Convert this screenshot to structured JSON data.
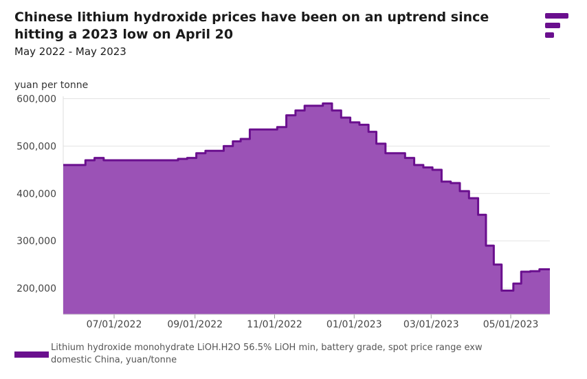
{
  "header": {
    "title": "Chinese lithium hydroxide prices have been on an uptrend since hitting a 2023 low on April 20",
    "subtitle": "May 2022 - May 2023"
  },
  "logo": {
    "icon": "brand-logo-icon",
    "color": "#6a0f8e"
  },
  "legend": {
    "label": "Lithium hydroxide monohydrate LiOH.H2O 56.5% LiOH min, battery grade, spot price range exw domestic China, yuan/tonne",
    "color": "#6a0f8e"
  },
  "chart_data": {
    "type": "area",
    "step": true,
    "ylabel": "yuan per tonne",
    "ylim": [
      145000,
      605000
    ],
    "yticks": [
      200000,
      300000,
      400000,
      500000,
      600000
    ],
    "ytick_labels": [
      "200,000",
      "300,000",
      "400,000",
      "500,000",
      "600,000"
    ],
    "xlim": [
      "2022-05-23",
      "2023-05-31"
    ],
    "xticks": [
      "2022-07-01",
      "2022-09-01",
      "2022-11-01",
      "2023-01-01",
      "2023-03-01",
      "2023-05-01"
    ],
    "xtick_labels": [
      "07/01/2022",
      "09/01/2022",
      "11/01/2022",
      "01/01/2023",
      "03/01/2023",
      "05/01/2023"
    ],
    "grid": true,
    "line_color": "#6a0f8e",
    "fill_color": "#9b52b6",
    "series": [
      {
        "name": "Lithium hydroxide monohydrate LiOH.H2O 56.5% LiOH min, battery grade, spot price range exw domestic China, yuan/tonne",
        "points": [
          [
            "2022-05-23",
            460000
          ],
          [
            "2022-06-09",
            470000
          ],
          [
            "2022-06-16",
            475000
          ],
          [
            "2022-06-23",
            470000
          ],
          [
            "2022-08-19",
            473000
          ],
          [
            "2022-08-26",
            475000
          ],
          [
            "2022-09-02",
            485000
          ],
          [
            "2022-09-09",
            490000
          ],
          [
            "2022-09-23",
            500000
          ],
          [
            "2022-09-30",
            510000
          ],
          [
            "2022-10-06",
            515000
          ],
          [
            "2022-10-13",
            535000
          ],
          [
            "2022-11-03",
            540000
          ],
          [
            "2022-11-10",
            565000
          ],
          [
            "2022-11-17",
            575000
          ],
          [
            "2022-11-24",
            585000
          ],
          [
            "2022-12-08",
            590000
          ],
          [
            "2022-12-15",
            575000
          ],
          [
            "2022-12-22",
            560000
          ],
          [
            "2022-12-29",
            550000
          ],
          [
            "2023-01-05",
            545000
          ],
          [
            "2023-01-12",
            530000
          ],
          [
            "2023-01-18",
            505000
          ],
          [
            "2023-01-25",
            485000
          ],
          [
            "2023-02-09",
            475000
          ],
          [
            "2023-02-16",
            460000
          ],
          [
            "2023-02-23",
            455000
          ],
          [
            "2023-03-02",
            450000
          ],
          [
            "2023-03-09",
            425000
          ],
          [
            "2023-03-16",
            422000
          ],
          [
            "2023-03-23",
            405000
          ],
          [
            "2023-03-30",
            390000
          ],
          [
            "2023-04-06",
            355000
          ],
          [
            "2023-04-12",
            290000
          ],
          [
            "2023-04-18",
            250000
          ],
          [
            "2023-04-24",
            195000
          ],
          [
            "2023-05-03",
            210000
          ],
          [
            "2023-05-09",
            235000
          ],
          [
            "2023-05-16",
            236000
          ],
          [
            "2023-05-23",
            240000
          ],
          [
            "2023-05-31",
            240000
          ]
        ]
      }
    ]
  }
}
